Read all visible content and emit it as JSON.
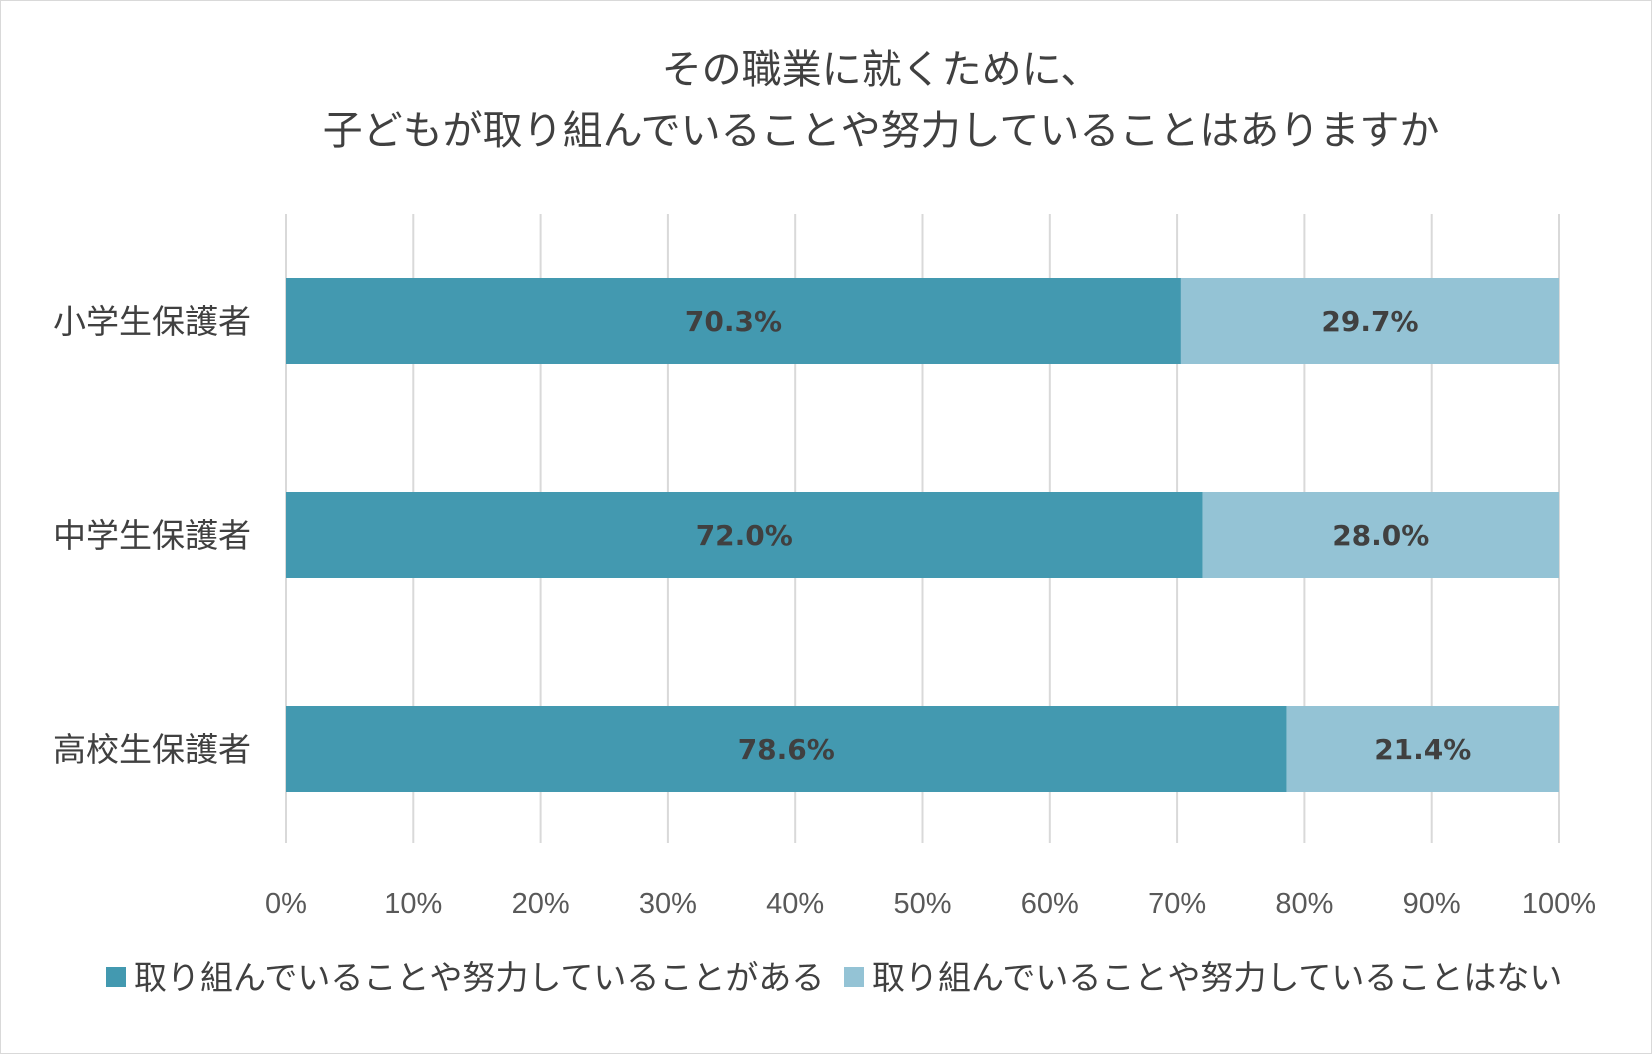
{
  "chart_data": {
    "type": "bar",
    "orientation": "horizontal",
    "stacked": "percent",
    "title_lines": [
      "その職業に就くために、",
      "子どもが取り組んでいることや努力していることはありますか"
    ],
    "categories": [
      "小学生保護者",
      "中学生保護者",
      "高校生保護者"
    ],
    "series": [
      {
        "name": "取り組んでいることや努力していることがある",
        "values": [
          70.3,
          72.0,
          78.6
        ],
        "labels": [
          "70.3%",
          "72.0%",
          "78.6%"
        ],
        "color": "#4399b0"
      },
      {
        "name": "取り組んでいることや努力していることはない",
        "values": [
          29.7,
          28.0,
          21.4
        ],
        "labels": [
          "29.7%",
          "28.0%",
          "21.4%"
        ],
        "color": "#94c3d5"
      }
    ],
    "xlim": [
      0,
      100
    ],
    "xticks": [
      "0%",
      "10%",
      "20%",
      "30%",
      "40%",
      "50%",
      "60%",
      "70%",
      "80%",
      "90%",
      "100%"
    ],
    "grid": true,
    "legend_position": "bottom"
  }
}
